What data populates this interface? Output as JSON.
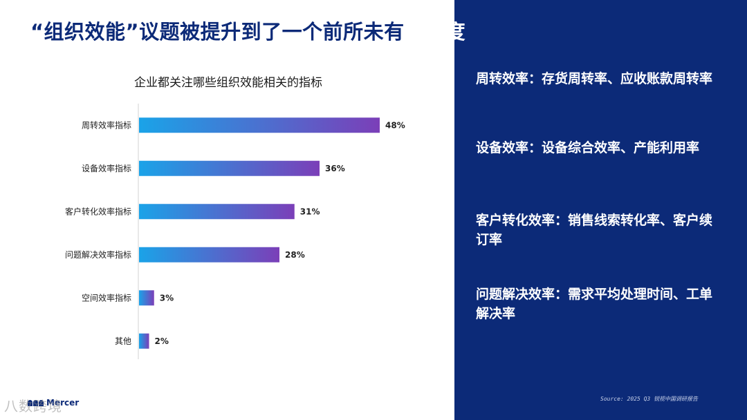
{
  "slide": {
    "title_part1": "“组织效能”议题被提升到了一个前所未有",
    "title_part2": "的高度",
    "source": "Source: 2025 Q3 锐视中国调研报告",
    "logo_text": "Mercer",
    "watermark": "八数跨境"
  },
  "bullets": [
    {
      "text": "周转效率：存货周转率、应收账款周转率"
    },
    {
      "text": "设备效率：设备综合效率、产能利用率"
    },
    {
      "text": "客户转化效率：销售线索转化率、客户续订率"
    },
    {
      "text": "问题解决效率：需求平均处理时间、工单解决率"
    }
  ],
  "colors": {
    "panel": "#0c2a78",
    "bar_start": "#1aa3e8",
    "bar_end": "#7b3fb8"
  },
  "chart_data": {
    "type": "bar",
    "orientation": "horizontal",
    "title": "企业都关注哪些组织效能相关的指标",
    "categories": [
      "周转效率指标",
      "设备效率指标",
      "客户转化效率指标",
      "问题解决效率指标",
      "空间效率指标",
      "其他"
    ],
    "values": [
      48,
      36,
      31,
      28,
      3,
      2
    ],
    "value_suffix": "%",
    "xlim": [
      0,
      60
    ],
    "grid": false,
    "legend": "none"
  }
}
